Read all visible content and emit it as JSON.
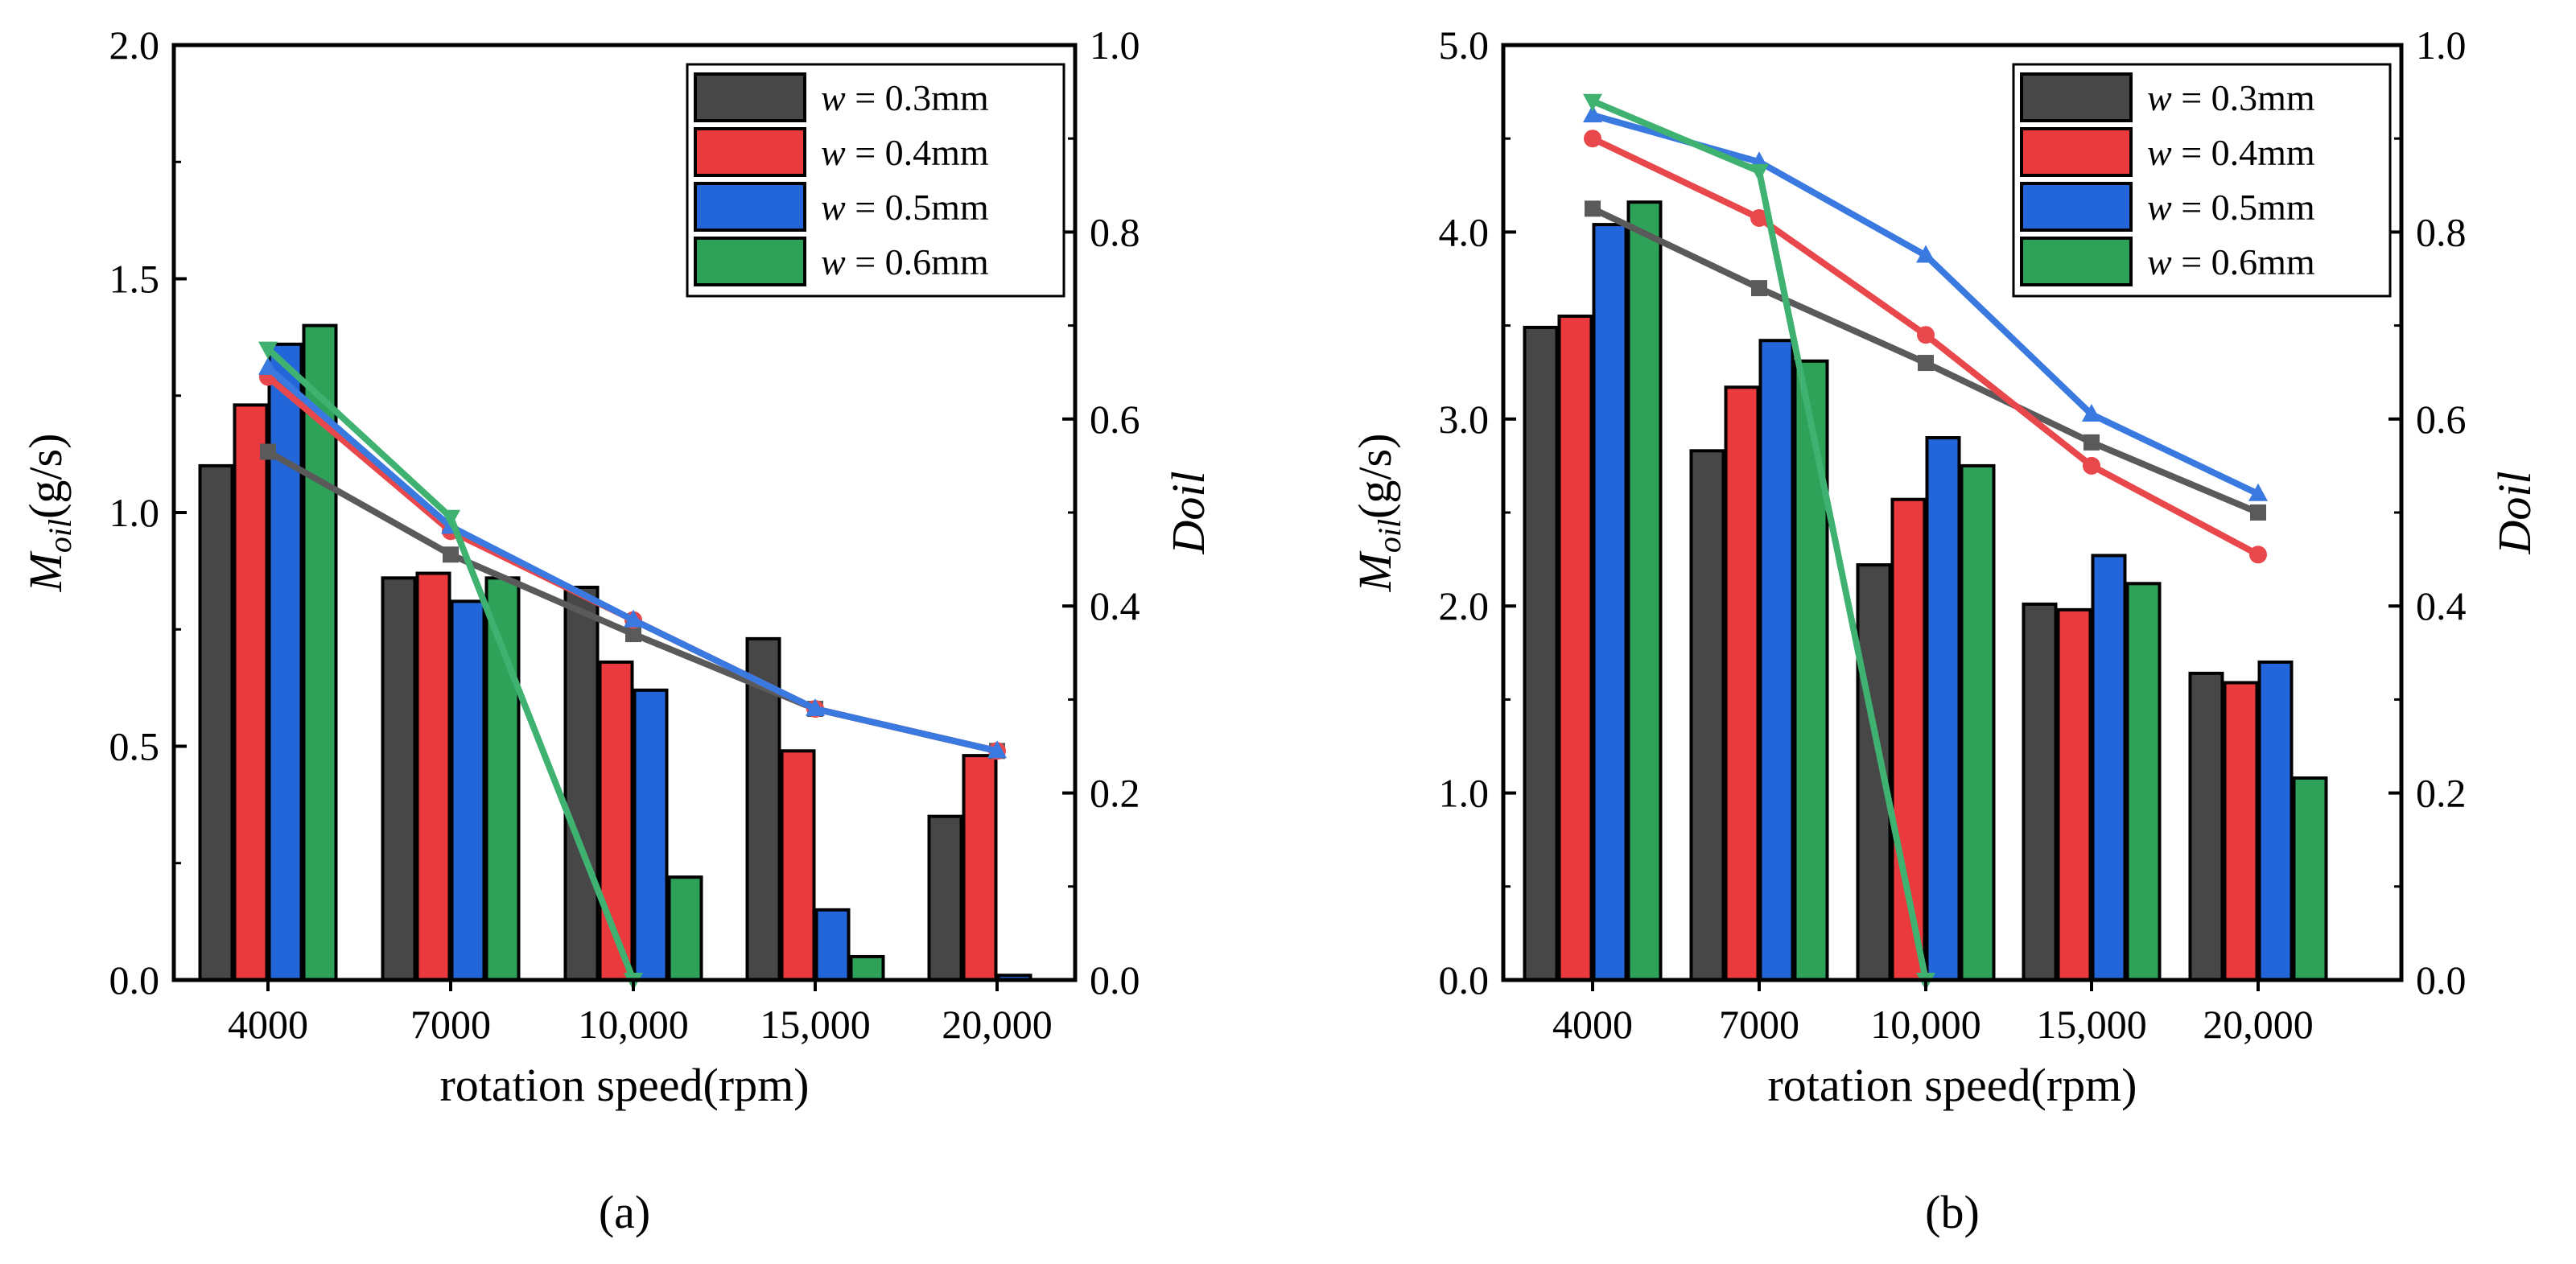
{
  "colors": {
    "s03": "#474747",
    "s04": "#ea3a3d",
    "s05": "#2366d9",
    "s06": "#2fa25a",
    "line03": "#5a5a5a",
    "line04": "#e8484b",
    "line05": "#3a7ae0",
    "line06": "#3fb170"
  },
  "chart_data": [
    {
      "type": "bar",
      "panel_label": "(a)",
      "categories": [
        "4000",
        "7000",
        "10,000",
        "15,000",
        "20,000"
      ],
      "xlabel": "rotation speed(rpm)",
      "ylabel_left": {
        "main": "M",
        "sub": "oil",
        "unit": "(g/s)"
      },
      "ylabel_right": "Doil",
      "ylim_left": [
        0,
        2.0
      ],
      "yticks_left": [
        "0.0",
        "0.5",
        "1.0",
        "1.5",
        "2.0"
      ],
      "ylim_right": [
        0,
        1.0
      ],
      "yticks_right": [
        "0.0",
        "0.2",
        "0.4",
        "0.6",
        "0.8",
        "1.0"
      ],
      "legend_position": "top-right",
      "legend": [
        {
          "var": "w",
          "text": " = 0.3mm"
        },
        {
          "var": "w",
          "text": " = 0.4mm"
        },
        {
          "var": "w",
          "text": " = 0.5mm"
        },
        {
          "var": "w",
          "text": " = 0.6mm"
        }
      ],
      "series": [
        {
          "name": "w = 0.3mm",
          "values": [
            1.1,
            0.86,
            0.84,
            0.73,
            0.35
          ]
        },
        {
          "name": "w = 0.4mm",
          "values": [
            1.23,
            0.87,
            0.68,
            0.49,
            0.48
          ]
        },
        {
          "name": "w = 0.5mm",
          "values": [
            1.36,
            0.81,
            0.62,
            0.15,
            0.01
          ]
        },
        {
          "name": "w = 0.6mm",
          "values": [
            1.4,
            0.86,
            0.22,
            0.05,
            0.0
          ]
        }
      ],
      "line_series": [
        {
          "name": "w = 0.3mm",
          "values": [
            0.565,
            0.455,
            0.37,
            0.29,
            0.245
          ]
        },
        {
          "name": "w = 0.4mm",
          "values": [
            0.645,
            0.48,
            0.385,
            0.29,
            0.245
          ]
        },
        {
          "name": "w = 0.5mm",
          "values": [
            0.655,
            0.485,
            0.385,
            0.29,
            0.245
          ]
        },
        {
          "name": "w = 0.6mm",
          "values": [
            0.675,
            0.495,
            0.0,
            null,
            null
          ]
        }
      ]
    },
    {
      "type": "bar",
      "panel_label": "(b)",
      "categories": [
        "4000",
        "7000",
        "10,000",
        "15,000",
        "20,000"
      ],
      "xlabel": "rotation speed(rpm)",
      "ylabel_left": {
        "main": "M",
        "sub": "oil",
        "unit": "(g/s)"
      },
      "ylabel_right": "Doil",
      "ylim_left": [
        0,
        5.0
      ],
      "yticks_left": [
        "0.0",
        "1.0",
        "2.0",
        "3.0",
        "4.0",
        "5.0"
      ],
      "ylim_right": [
        0,
        1.0
      ],
      "yticks_right": [
        "0.0",
        "0.2",
        "0.4",
        "0.6",
        "0.8",
        "1.0"
      ],
      "legend_position": "top-right",
      "legend": [
        {
          "var": "w",
          "text": " = 0.3mm"
        },
        {
          "var": "w",
          "text": " = 0.4mm"
        },
        {
          "var": "w",
          "text": " = 0.5mm"
        },
        {
          "var": "w",
          "text": " = 0.6mm"
        }
      ],
      "series": [
        {
          "name": "w = 0.3mm",
          "values": [
            3.49,
            2.83,
            2.22,
            2.01,
            1.64
          ]
        },
        {
          "name": "w = 0.4mm",
          "values": [
            3.55,
            3.17,
            2.57,
            1.98,
            1.59
          ]
        },
        {
          "name": "w = 0.5mm",
          "values": [
            4.04,
            3.42,
            2.9,
            2.27,
            1.7
          ]
        },
        {
          "name": "w = 0.6mm",
          "values": [
            4.16,
            3.31,
            2.75,
            2.12,
            1.08
          ]
        }
      ],
      "line_series": [
        {
          "name": "w = 0.3mm",
          "values": [
            0.825,
            0.74,
            0.66,
            0.575,
            0.5
          ]
        },
        {
          "name": "w = 0.4mm",
          "values": [
            0.9,
            0.815,
            0.69,
            0.55,
            0.455
          ]
        },
        {
          "name": "w = 0.5mm",
          "values": [
            0.925,
            0.875,
            0.775,
            0.605,
            0.52
          ]
        },
        {
          "name": "w = 0.6mm",
          "values": [
            0.94,
            0.865,
            0.0,
            null,
            null
          ]
        }
      ]
    }
  ]
}
